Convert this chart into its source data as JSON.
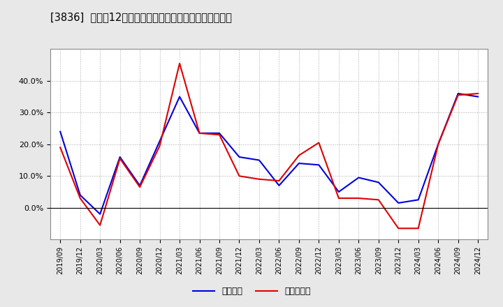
{
  "title": "[3836]  利益の12か月移動合計の対前年同期増減率の推移",
  "x_labels": [
    "2019/09",
    "2019/12",
    "2020/03",
    "2020/06",
    "2020/09",
    "2020/12",
    "2021/03",
    "2021/06",
    "2021/09",
    "2021/12",
    "2022/03",
    "2022/06",
    "2022/09",
    "2022/12",
    "2023/03",
    "2023/06",
    "2023/09",
    "2023/12",
    "2024/03",
    "2024/06",
    "2024/09",
    "2024/12"
  ],
  "blue_values": [
    0.24,
    0.04,
    -0.02,
    0.16,
    0.07,
    0.21,
    0.35,
    0.235,
    0.235,
    0.16,
    0.15,
    0.07,
    0.14,
    0.135,
    0.05,
    0.095,
    0.08,
    0.015,
    0.025,
    0.2,
    0.36,
    0.35
  ],
  "red_values": [
    0.19,
    0.03,
    -0.055,
    0.155,
    0.065,
    0.195,
    0.455,
    0.235,
    0.23,
    0.1,
    0.09,
    0.085,
    0.165,
    0.205,
    0.03,
    0.03,
    0.025,
    -0.065,
    -0.065,
    0.2,
    0.355,
    0.36
  ],
  "blue_label": "経常利益",
  "red_label": "当期純利益",
  "ylim_min": -0.1,
  "ylim_max": 0.5,
  "yticks": [
    0.0,
    0.1,
    0.2,
    0.3,
    0.4
  ],
  "ytick_labels": [
    "0.0%",
    "10.0%",
    "20.0%",
    "30.0%",
    "40.0%"
  ],
  "blue_color": "#0000dd",
  "red_color": "#dd0000",
  "bg_color": "#e8e8e8",
  "plot_bg": "#ffffff",
  "title_fontsize": 10.5,
  "grid_color": "#aaaaaa",
  "line_width": 1.5
}
